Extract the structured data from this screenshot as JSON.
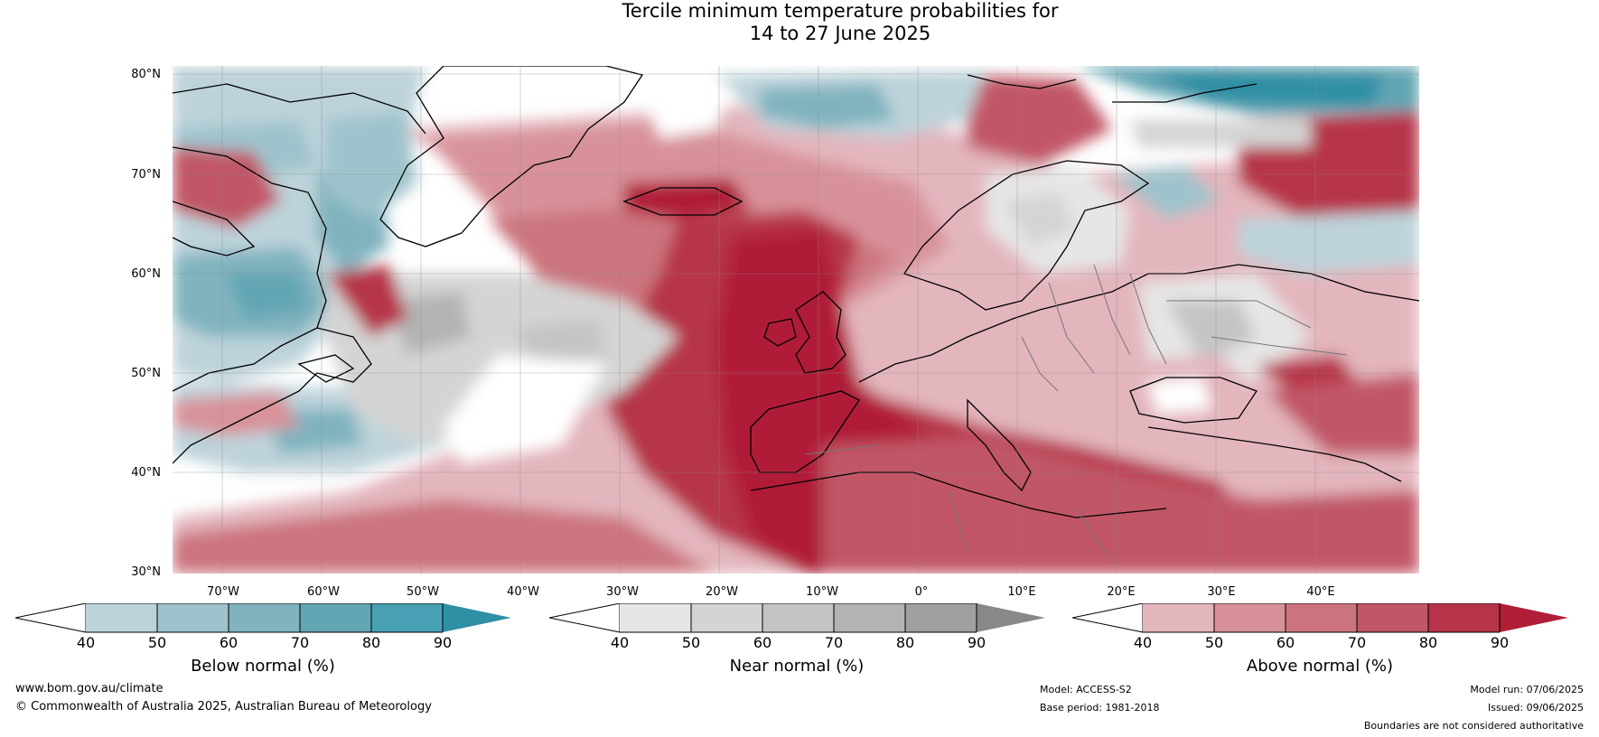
{
  "title": {
    "line1": "Tercile minimum temperature probabilities for",
    "line2": "14 to 27 June 2025"
  },
  "lat_labels": [
    "80°N",
    "70°N",
    "60°N",
    "50°N",
    "40°N",
    "30°N"
  ],
  "lon_labels": [
    "70°W",
    "60°W",
    "50°W",
    "40°W",
    "30°W",
    "20°W",
    "10°W",
    "0°",
    "10°E",
    "20°E",
    "30°E",
    "40°E"
  ],
  "colorbars": [
    {
      "label": "Below normal (%)",
      "ticks": [
        "40",
        "50",
        "60",
        "70",
        "80",
        "90"
      ],
      "colors": [
        "#bdd3da",
        "#9fc3cc",
        "#80b3bf",
        "#62a5b3",
        "#47a0b3",
        "#2e8fa5"
      ]
    },
    {
      "label": "Near normal (%)",
      "ticks": [
        "40",
        "50",
        "60",
        "70",
        "80",
        "90"
      ],
      "colors": [
        "#e6e6e6",
        "#d4d4d4",
        "#c4c4c4",
        "#b3b3b3",
        "#a0a0a0",
        "#888888"
      ]
    },
    {
      "label": "Above normal (%)",
      "ticks": [
        "40",
        "50",
        "60",
        "70",
        "80",
        "90"
      ],
      "colors": [
        "#e3b5bd",
        "#d89199",
        "#cc747e",
        "#c15666",
        "#b73449",
        "#b01e38"
      ]
    }
  ],
  "footer": {
    "website": "www.bom.gov.au/climate",
    "copyright": "© Commonwealth of Australia 2025, Australian Bureau of Meteorology",
    "model": "Model: ACCESS-S2",
    "base_period": "Base period: 1981-2018",
    "model_run": "Model run: 07/06/2025",
    "issued": "Issued: 09/06/2025",
    "disclaimer": "Boundaries are not considered authoritative"
  },
  "colors": {
    "above_strong": "#b01e38",
    "above_mid": "#cc747e",
    "above_weak": "#e3b5bd",
    "below_strong": "#2e8fa5",
    "below_weak": "#bdd3da",
    "near": "#d4d4d4"
  }
}
